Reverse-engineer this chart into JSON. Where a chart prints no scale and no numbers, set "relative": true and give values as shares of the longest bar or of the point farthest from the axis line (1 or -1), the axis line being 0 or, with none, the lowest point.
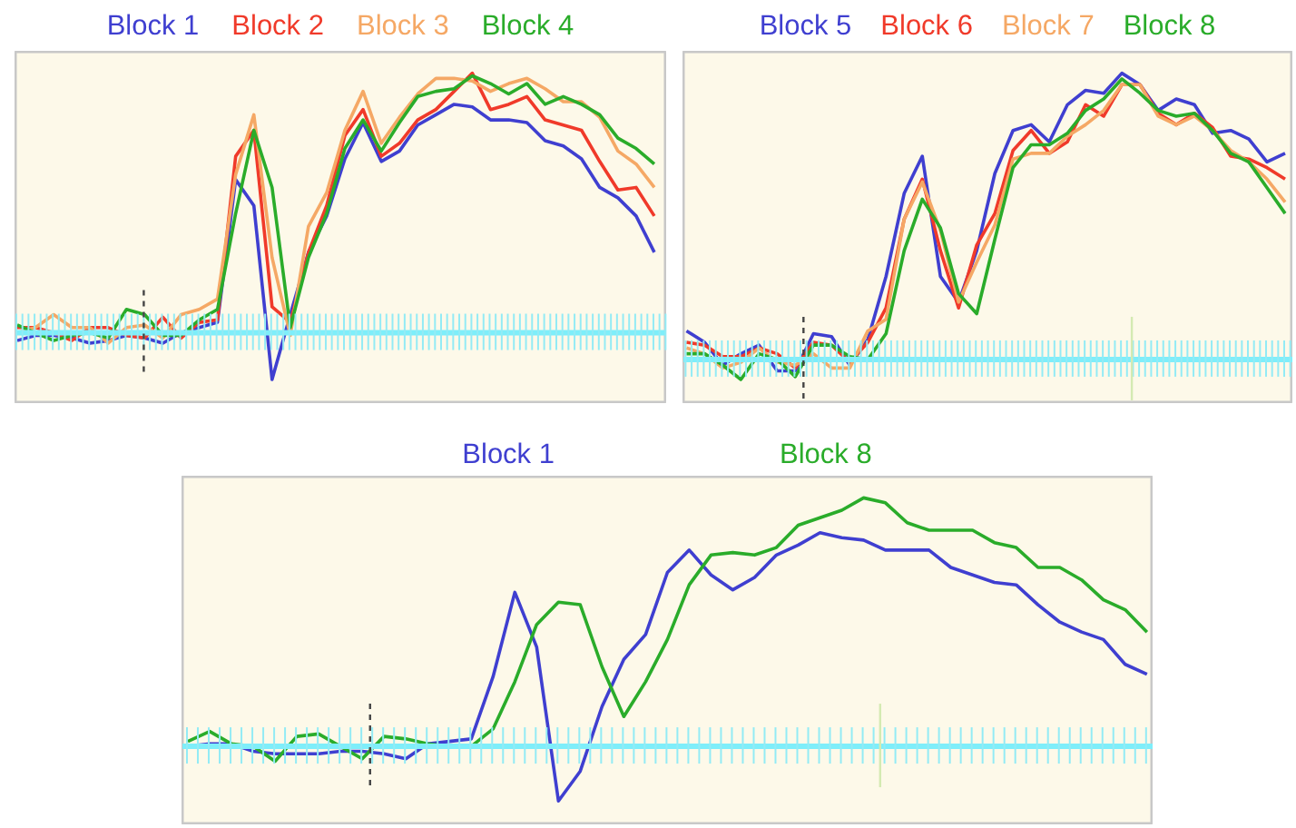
{
  "chart_data": [
    {
      "type": "line",
      "relative": true,
      "legend": "top",
      "categories": [
        null,
        null,
        null,
        null,
        null,
        null,
        null,
        null,
        null,
        null,
        null,
        null,
        null,
        null,
        null,
        null,
        null,
        null,
        null,
        null,
        null,
        null,
        null,
        null,
        null,
        null,
        null,
        null,
        null,
        null,
        null,
        null,
        null,
        null,
        null,
        null
      ],
      "ref_lines": [
        {
          "axis": "y",
          "value": 0,
          "color": "#7eeefa"
        }
      ],
      "series": [
        {
          "name": "Block 1",
          "color": "#3f3fd0",
          "values": [
            -0.03,
            -0.01,
            -0.01,
            -0.02,
            -0.04,
            -0.03,
            -0.01,
            -0.02,
            -0.04,
            0.0,
            0.02,
            0.04,
            0.59,
            0.49,
            -0.18,
            0.07,
            0.31,
            0.45,
            0.67,
            0.81,
            0.66,
            0.7,
            0.8,
            0.84,
            0.88,
            0.87,
            0.82,
            0.82,
            0.81,
            0.74,
            0.72,
            0.67,
            0.56,
            0.52,
            0.45,
            0.31
          ]
        },
        {
          "name": "Block 2",
          "color": "#f03a2a",
          "values": [
            0.02,
            0.02,
            0.0,
            -0.03,
            0.02,
            0.02,
            -0.01,
            -0.02,
            0.06,
            -0.02,
            0.04,
            0.05,
            0.68,
            0.78,
            0.1,
            0.04,
            0.31,
            0.49,
            0.76,
            0.86,
            0.68,
            0.73,
            0.82,
            0.86,
            0.93,
            1.0,
            0.86,
            0.88,
            0.91,
            0.82,
            0.8,
            0.78,
            0.66,
            0.55,
            0.56,
            0.45
          ]
        },
        {
          "name": "Block 3",
          "color": "#f5a865",
          "values": [
            0.0,
            0.02,
            0.07,
            0.02,
            0.02,
            -0.04,
            0.02,
            0.03,
            -0.02,
            0.07,
            0.09,
            0.13,
            0.61,
            0.84,
            0.29,
            -0.01,
            0.41,
            0.54,
            0.78,
            0.93,
            0.73,
            0.83,
            0.92,
            0.98,
            0.98,
            0.97,
            0.93,
            0.96,
            0.98,
            0.94,
            0.89,
            0.89,
            0.83,
            0.7,
            0.65,
            0.56
          ]
        },
        {
          "name": "Block 4",
          "color": "#2aac2a",
          "values": [
            0.03,
            0.0,
            -0.03,
            -0.01,
            0.0,
            -0.02,
            0.09,
            0.07,
            -0.01,
            -0.01,
            0.05,
            0.09,
            0.46,
            0.78,
            0.56,
            0.02,
            0.29,
            0.46,
            0.71,
            0.82,
            0.7,
            0.81,
            0.91,
            0.93,
            0.94,
            0.99,
            0.96,
            0.92,
            0.96,
            0.88,
            0.91,
            0.88,
            0.84,
            0.75,
            0.71,
            0.65
          ]
        }
      ]
    },
    {
      "type": "line",
      "relative": true,
      "legend": "top",
      "categories": [
        null,
        null,
        null,
        null,
        null,
        null,
        null,
        null,
        null,
        null,
        null,
        null,
        null,
        null,
        null,
        null,
        null,
        null,
        null,
        null,
        null,
        null,
        null,
        null,
        null,
        null,
        null,
        null,
        null,
        null,
        null,
        null,
        null,
        null
      ],
      "ref_lines": [
        {
          "axis": "y",
          "value": 0,
          "color": "#7eeefa"
        }
      ],
      "series": [
        {
          "name": "Block 5",
          "color": "#3f3fd0",
          "values": [
            0.1,
            0.06,
            -0.02,
            0.02,
            0.05,
            -0.04,
            -0.04,
            0.09,
            0.08,
            -0.02,
            0.07,
            0.29,
            0.58,
            0.71,
            0.29,
            0.2,
            0.38,
            0.65,
            0.8,
            0.82,
            0.76,
            0.89,
            0.94,
            0.93,
            1.0,
            0.96,
            0.87,
            0.91,
            0.89,
            0.79,
            0.8,
            0.77,
            0.69,
            0.72
          ]
        },
        {
          "name": "Block 6",
          "color": "#f03a2a",
          "values": [
            0.06,
            0.05,
            0.01,
            0.01,
            0.04,
            0.02,
            -0.03,
            0.06,
            0.05,
            -0.01,
            0.06,
            0.18,
            0.49,
            0.63,
            0.38,
            0.18,
            0.4,
            0.51,
            0.73,
            0.8,
            0.72,
            0.76,
            0.89,
            0.85,
            0.96,
            0.96,
            0.86,
            0.82,
            0.86,
            0.81,
            0.71,
            0.7,
            0.67,
            0.63
          ]
        },
        {
          "name": "Block 7",
          "color": "#f5a865",
          "values": [
            0.04,
            0.02,
            -0.03,
            -0.01,
            0.04,
            -0.01,
            -0.02,
            0.02,
            -0.03,
            -0.03,
            0.1,
            0.14,
            0.49,
            0.62,
            0.45,
            0.2,
            0.34,
            0.47,
            0.7,
            0.72,
            0.72,
            0.78,
            0.82,
            0.87,
            0.96,
            0.96,
            0.85,
            0.82,
            0.85,
            0.8,
            0.73,
            0.69,
            0.63,
            0.55
          ]
        },
        {
          "name": "Block 8",
          "color": "#2aac2a",
          "values": [
            0.02,
            0.02,
            -0.02,
            -0.07,
            0.02,
            0.0,
            -0.06,
            0.05,
            0.05,
            0.01,
            0.0,
            0.09,
            0.38,
            0.56,
            0.46,
            0.23,
            0.16,
            0.42,
            0.67,
            0.75,
            0.75,
            0.79,
            0.87,
            0.91,
            0.98,
            0.93,
            0.87,
            0.85,
            0.86,
            0.8,
            0.72,
            0.69,
            0.6,
            0.51
          ]
        }
      ]
    },
    {
      "type": "line",
      "relative": true,
      "legend": "top",
      "categories": [
        null,
        null,
        null,
        null,
        null,
        null,
        null,
        null,
        null,
        null,
        null,
        null,
        null,
        null,
        null,
        null,
        null,
        null,
        null,
        null,
        null,
        null,
        null,
        null,
        null,
        null,
        null,
        null,
        null,
        null,
        null,
        null,
        null,
        null,
        null,
        null,
        null,
        null,
        null,
        null,
        null,
        null,
        null,
        null,
        null
      ],
      "ref_lines": [
        {
          "axis": "y",
          "value": 0,
          "color": "#7eeefa"
        }
      ],
      "series": [
        {
          "name": "Block 1",
          "color": "#3f3fd0",
          "values": [
            0.0,
            0.01,
            0.01,
            -0.02,
            -0.03,
            -0.03,
            -0.03,
            -0.02,
            -0.02,
            -0.03,
            -0.05,
            0.01,
            0.02,
            0.03,
            0.28,
            0.62,
            0.4,
            -0.22,
            -0.1,
            0.16,
            0.35,
            0.45,
            0.7,
            0.79,
            0.69,
            0.63,
            0.68,
            0.77,
            0.81,
            0.86,
            0.84,
            0.83,
            0.79,
            0.79,
            0.79,
            0.72,
            0.69,
            0.66,
            0.65,
            0.57,
            0.5,
            0.46,
            0.43,
            0.33,
            0.29
          ]
        },
        {
          "name": "Block 8",
          "color": "#2aac2a",
          "values": [
            0.02,
            0.06,
            0.01,
            0.0,
            -0.06,
            0.04,
            0.05,
            0.0,
            -0.05,
            0.04,
            0.03,
            0.01,
            0.0,
            0.0,
            0.07,
            0.26,
            0.49,
            0.58,
            0.57,
            0.32,
            0.12,
            0.26,
            0.43,
            0.65,
            0.77,
            0.78,
            0.77,
            0.8,
            0.89,
            0.92,
            0.95,
            1.0,
            0.98,
            0.9,
            0.87,
            0.87,
            0.87,
            0.82,
            0.8,
            0.72,
            0.72,
            0.67,
            0.59,
            0.55,
            0.46
          ]
        }
      ]
    }
  ]
}
